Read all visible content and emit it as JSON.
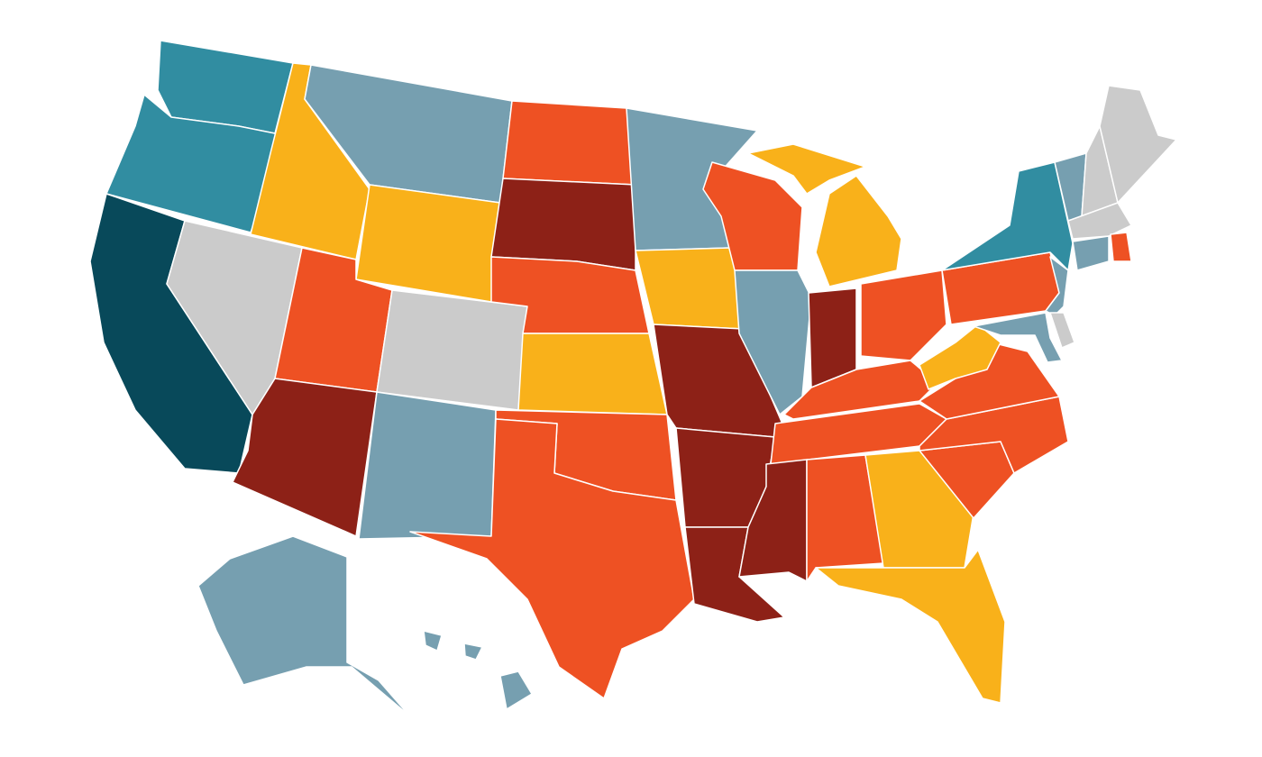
{
  "map": {
    "fills": [
      "#08495a",
      "#318da1",
      "#769fb0",
      "#cbcbcb",
      "#f9b11a",
      "#ee5123",
      "#8d2117"
    ]
  }
}
